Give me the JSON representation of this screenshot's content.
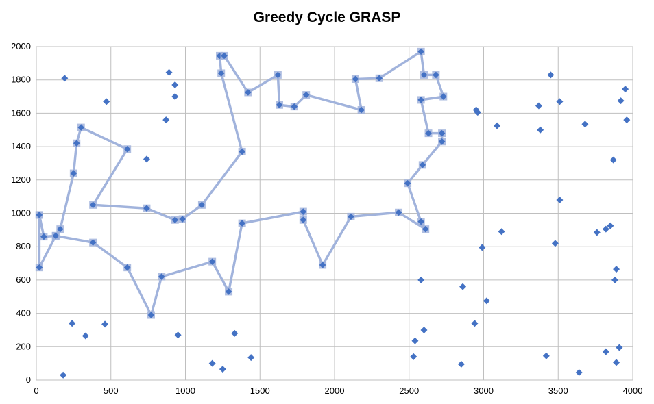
{
  "chart_data": {
    "type": "scatter",
    "title": "Greedy Cycle GRASP",
    "xlabel": "",
    "ylabel": "",
    "xlim": [
      0,
      4000
    ],
    "ylim": [
      0,
      2000
    ],
    "xticks": [
      0,
      500,
      1000,
      1500,
      2000,
      2500,
      3000,
      3500,
      4000
    ],
    "yticks": [
      0,
      200,
      400,
      600,
      800,
      1000,
      1200,
      1400,
      1600,
      1800,
      2000
    ],
    "grid": true,
    "legend": "none",
    "colors": {
      "points": "#4472c4",
      "cycle": "#a1b3dc",
      "grid": "#bfbfbf"
    },
    "series": [
      {
        "kind": "cycle-line-with-markers",
        "points": [
          [
            20,
            990
          ],
          [
            50,
            860
          ],
          [
            130,
            865
          ],
          [
            160,
            905
          ],
          [
            250,
            1240
          ],
          [
            270,
            1420
          ],
          [
            300,
            1515
          ],
          [
            610,
            1385
          ],
          [
            380,
            1050
          ],
          [
            740,
            1030
          ],
          [
            930,
            960
          ],
          [
            980,
            965
          ],
          [
            1110,
            1050
          ],
          [
            1380,
            1370
          ],
          [
            1240,
            1840
          ],
          [
            1230,
            1945
          ],
          [
            1260,
            1945
          ],
          [
            1420,
            1725
          ],
          [
            1620,
            1830
          ],
          [
            1630,
            1650
          ],
          [
            1730,
            1640
          ],
          [
            1810,
            1710
          ],
          [
            2180,
            1620
          ],
          [
            2140,
            1805
          ],
          [
            2300,
            1810
          ],
          [
            2580,
            1970
          ],
          [
            2600,
            1830
          ],
          [
            2680,
            1830
          ],
          [
            2730,
            1700
          ],
          [
            2580,
            1680
          ],
          [
            2630,
            1480
          ],
          [
            2720,
            1480
          ],
          [
            2720,
            1430
          ],
          [
            2590,
            1290
          ],
          [
            2490,
            1180
          ],
          [
            2580,
            950
          ],
          [
            2610,
            905
          ],
          [
            2430,
            1005
          ],
          [
            2110,
            980
          ],
          [
            1920,
            690
          ],
          [
            1790,
            960
          ],
          [
            1790,
            1010
          ],
          [
            1380,
            940
          ],
          [
            1290,
            530
          ],
          [
            1180,
            710
          ],
          [
            840,
            620
          ],
          [
            770,
            390
          ],
          [
            610,
            675
          ],
          [
            380,
            825
          ],
          [
            130,
            865
          ],
          [
            20,
            675
          ],
          [
            20,
            990
          ]
        ]
      },
      {
        "kind": "markers-only",
        "points": [
          [
            190,
            1810
          ],
          [
            890,
            1845
          ],
          [
            470,
            1670
          ],
          [
            930,
            1770
          ],
          [
            930,
            1700
          ],
          [
            870,
            1560
          ],
          [
            740,
            1325
          ],
          [
            240,
            340
          ],
          [
            460,
            335
          ],
          [
            330,
            265
          ],
          [
            950,
            270
          ],
          [
            1330,
            280
          ],
          [
            1440,
            135
          ],
          [
            1180,
            100
          ],
          [
            1250,
            65
          ],
          [
            180,
            30
          ],
          [
            2950,
            1620
          ],
          [
            2960,
            1605
          ],
          [
            3090,
            1525
          ],
          [
            3370,
            1645
          ],
          [
            3380,
            1500
          ],
          [
            3450,
            1830
          ],
          [
            3510,
            1670
          ],
          [
            3680,
            1535
          ],
          [
            3950,
            1745
          ],
          [
            3920,
            1675
          ],
          [
            3960,
            1560
          ],
          [
            3870,
            1320
          ],
          [
            3510,
            1080
          ],
          [
            3760,
            885
          ],
          [
            3820,
            905
          ],
          [
            3850,
            925
          ],
          [
            3480,
            820
          ],
          [
            3120,
            890
          ],
          [
            2990,
            795
          ],
          [
            3890,
            665
          ],
          [
            3880,
            600
          ],
          [
            2580,
            600
          ],
          [
            2860,
            560
          ],
          [
            3020,
            475
          ],
          [
            2940,
            340
          ],
          [
            2600,
            300
          ],
          [
            2540,
            235
          ],
          [
            2530,
            140
          ],
          [
            2850,
            95
          ],
          [
            3420,
            145
          ],
          [
            3820,
            170
          ],
          [
            3910,
            195
          ],
          [
            3890,
            105
          ],
          [
            3640,
            45
          ]
        ]
      }
    ]
  }
}
